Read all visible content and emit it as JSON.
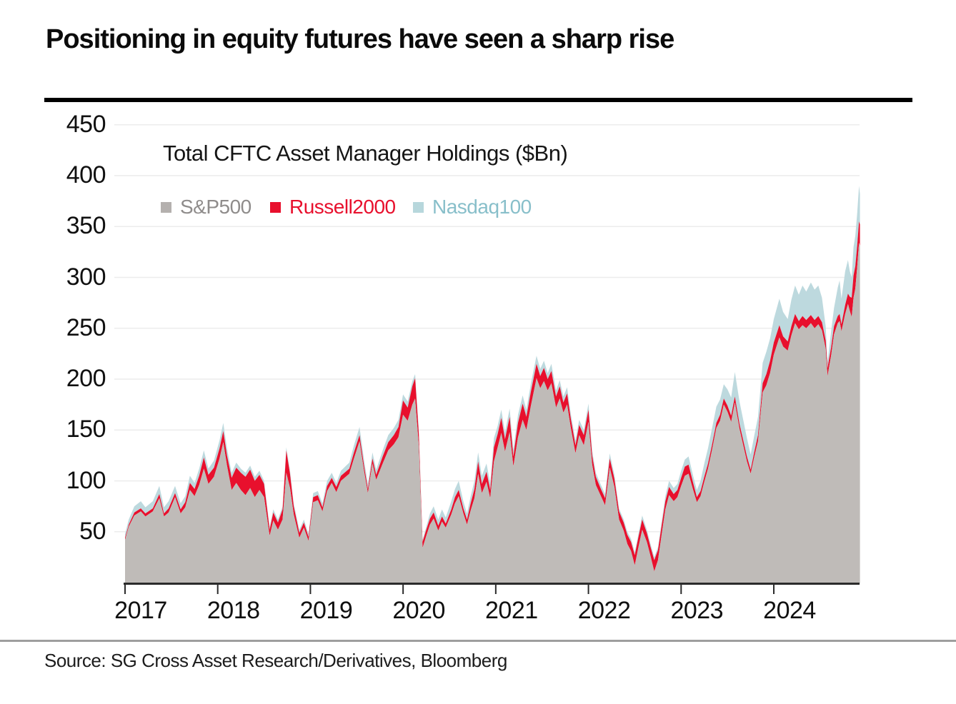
{
  "header": {
    "title": "Positioning in equity futures have seen a sharp rise"
  },
  "legend": {
    "heading": "Total CFTC Asset Manager Holdings ($Bn)",
    "items": [
      {
        "label": "S&P500",
        "marker_color": "#b4b0ae",
        "text_color": "#8f8c8b"
      },
      {
        "label": "Russell2000",
        "marker_color": "#e8102d",
        "text_color": "#e8102d"
      },
      {
        "label": "Nasdaq100",
        "marker_color": "#b7d7dc",
        "text_color": "#88bfca"
      }
    ]
  },
  "footer": {
    "source": "Source: SG Cross Asset Research/Derivatives, Bloomberg"
  },
  "colors": {
    "sp_area": "#bfbbb8",
    "russell_area": "#e8102d",
    "nasdaq_area": "#bdd9de",
    "grid": "#ececec",
    "axis": "#2b2b2b",
    "text": "#101010"
  },
  "chart_data": {
    "type": "area",
    "stacked": true,
    "title": "Total CFTC Asset Manager Holdings ($Bn)",
    "series_names": [
      "S&P500",
      "Russell2000",
      "Nasdaq100"
    ],
    "x_unit": "year (decimal)",
    "xlim": [
      2017,
      2024.95
    ],
    "ylim": [
      0,
      470
    ],
    "x_ticks": [
      2017,
      2018,
      2019,
      2020,
      2021,
      2022,
      2023,
      2024
    ],
    "y_ticks": [
      50,
      100,
      150,
      200,
      250,
      300,
      350,
      400,
      450
    ],
    "grid": true,
    "legend_position": "top-left",
    "points_format": "[year, S&P500, Russell2000, Nasdaq100] in $Bn (stacked bottom-to-top)",
    "points": [
      [
        2017.0,
        42,
        2,
        4
      ],
      [
        2017.04,
        55,
        2,
        5
      ],
      [
        2017.1,
        66,
        3,
        6
      ],
      [
        2017.17,
        70,
        3,
        7
      ],
      [
        2017.22,
        65,
        3,
        6
      ],
      [
        2017.3,
        70,
        3,
        7
      ],
      [
        2017.37,
        83,
        4,
        8
      ],
      [
        2017.42,
        65,
        3,
        6
      ],
      [
        2017.47,
        69,
        4,
        7
      ],
      [
        2017.54,
        84,
        4,
        7
      ],
      [
        2017.6,
        68,
        4,
        6
      ],
      [
        2017.65,
        74,
        5,
        6
      ],
      [
        2017.7,
        91,
        7,
        7
      ],
      [
        2017.75,
        85,
        7,
        6
      ],
      [
        2017.8,
        96,
        9,
        7
      ],
      [
        2017.85,
        112,
        11,
        7
      ],
      [
        2017.9,
        97,
        9,
        6
      ],
      [
        2017.96,
        104,
        9,
        7
      ],
      [
        2018.02,
        122,
        10,
        8
      ],
      [
        2018.06,
        138,
        11,
        8
      ],
      [
        2018.1,
        115,
        10,
        7
      ],
      [
        2018.15,
        91,
        12,
        5
      ],
      [
        2018.2,
        98,
        15,
        5
      ],
      [
        2018.25,
        91,
        17,
        4
      ],
      [
        2018.3,
        86,
        18,
        4
      ],
      [
        2018.35,
        93,
        18,
        4
      ],
      [
        2018.4,
        84,
        16,
        4
      ],
      [
        2018.45,
        91,
        15,
        4
      ],
      [
        2018.5,
        84,
        13,
        3
      ],
      [
        2018.56,
        46,
        6,
        3
      ],
      [
        2018.6,
        61,
        8,
        3
      ],
      [
        2018.65,
        52,
        7,
        3
      ],
      [
        2018.7,
        62,
        10,
        3
      ],
      [
        2018.74,
        108,
        22,
        3
      ],
      [
        2018.78,
        93,
        14,
        3
      ],
      [
        2018.82,
        67,
        8,
        3
      ],
      [
        2018.88,
        44,
        5,
        3
      ],
      [
        2018.93,
        54,
        5,
        3
      ],
      [
        2018.98,
        41,
        4,
        3
      ],
      [
        2019.03,
        79,
        5,
        4
      ],
      [
        2019.08,
        81,
        5,
        4
      ],
      [
        2019.13,
        70,
        4,
        4
      ],
      [
        2019.18,
        90,
        5,
        5
      ],
      [
        2019.23,
        98,
        5,
        5
      ],
      [
        2019.28,
        89,
        5,
        4
      ],
      [
        2019.33,
        100,
        5,
        5
      ],
      [
        2019.42,
        107,
        5,
        6
      ],
      [
        2019.47,
        122,
        6,
        7
      ],
      [
        2019.53,
        139,
        6,
        8
      ],
      [
        2019.58,
        109,
        5,
        6
      ],
      [
        2019.62,
        88,
        4,
        5
      ],
      [
        2019.67,
        117,
        5,
        6
      ],
      [
        2019.71,
        101,
        5,
        5
      ],
      [
        2019.78,
        117,
        7,
        6
      ],
      [
        2019.84,
        130,
        8,
        7
      ],
      [
        2019.9,
        136,
        9,
        7
      ],
      [
        2019.95,
        143,
        10,
        7
      ],
      [
        2020.0,
        165,
        14,
        6
      ],
      [
        2020.05,
        159,
        13,
        6
      ],
      [
        2020.1,
        175,
        18,
        5
      ],
      [
        2020.13,
        181,
        20,
        4
      ],
      [
        2020.17,
        134,
        12,
        4
      ],
      [
        2020.21,
        34,
        6,
        2
      ],
      [
        2020.25,
        46,
        6,
        3
      ],
      [
        2020.29,
        57,
        6,
        5
      ],
      [
        2020.33,
        63,
        6,
        6
      ],
      [
        2020.38,
        51,
        5,
        6
      ],
      [
        2020.42,
        60,
        5,
        7
      ],
      [
        2020.46,
        54,
        4,
        6
      ],
      [
        2020.52,
        67,
        5,
        8
      ],
      [
        2020.56,
        78,
        6,
        8
      ],
      [
        2020.6,
        85,
        6,
        9
      ],
      [
        2020.65,
        68,
        5,
        7
      ],
      [
        2020.69,
        57,
        5,
        6
      ],
      [
        2020.73,
        71,
        7,
        7
      ],
      [
        2020.77,
        83,
        9,
        8
      ],
      [
        2020.81,
        107,
        12,
        9
      ],
      [
        2020.85,
        88,
        9,
        8
      ],
      [
        2020.9,
        99,
        10,
        8
      ],
      [
        2020.94,
        83,
        8,
        7
      ],
      [
        2020.98,
        119,
        14,
        9
      ],
      [
        2021.02,
        133,
        13,
        8
      ],
      [
        2021.06,
        147,
        15,
        8
      ],
      [
        2021.1,
        129,
        12,
        7
      ],
      [
        2021.15,
        148,
        15,
        8
      ],
      [
        2021.19,
        114,
        10,
        7
      ],
      [
        2021.24,
        143,
        14,
        8
      ],
      [
        2021.29,
        160,
        16,
        8
      ],
      [
        2021.33,
        150,
        13,
        7
      ],
      [
        2021.38,
        174,
        14,
        8
      ],
      [
        2021.44,
        201,
        14,
        8
      ],
      [
        2021.48,
        191,
        12,
        7
      ],
      [
        2021.52,
        198,
        13,
        7
      ],
      [
        2021.56,
        189,
        11,
        6
      ],
      [
        2021.6,
        196,
        12,
        7
      ],
      [
        2021.65,
        172,
        11,
        6
      ],
      [
        2021.69,
        181,
        12,
        6
      ],
      [
        2021.73,
        167,
        10,
        6
      ],
      [
        2021.77,
        175,
        11,
        6
      ],
      [
        2021.81,
        152,
        9,
        5
      ],
      [
        2021.86,
        127,
        8,
        5
      ],
      [
        2021.9,
        145,
        10,
        5
      ],
      [
        2021.95,
        135,
        10,
        5
      ],
      [
        2022.0,
        158,
        12,
        6
      ],
      [
        2022.04,
        116,
        9,
        5
      ],
      [
        2022.08,
        96,
        8,
        4
      ],
      [
        2022.13,
        86,
        7,
        4
      ],
      [
        2022.18,
        76,
        7,
        4
      ],
      [
        2022.23,
        113,
        9,
        5
      ],
      [
        2022.28,
        94,
        8,
        4
      ],
      [
        2022.33,
        62,
        8,
        3
      ],
      [
        2022.38,
        51,
        8,
        3
      ],
      [
        2022.42,
        38,
        9,
        3
      ],
      [
        2022.46,
        31,
        9,
        3
      ],
      [
        2022.5,
        17,
        10,
        3
      ],
      [
        2022.54,
        35,
        10,
        3
      ],
      [
        2022.58,
        52,
        10,
        4
      ],
      [
        2022.63,
        40,
        9,
        3
      ],
      [
        2022.67,
        26,
        9,
        3
      ],
      [
        2022.71,
        11,
        11,
        3
      ],
      [
        2022.75,
        22,
        10,
        3
      ],
      [
        2022.79,
        47,
        9,
        4
      ],
      [
        2022.83,
        72,
        8,
        5
      ],
      [
        2022.87,
        86,
        8,
        6
      ],
      [
        2022.92,
        80,
        7,
        6
      ],
      [
        2022.96,
        84,
        7,
        6
      ],
      [
        2023.0,
        95,
        8,
        7
      ],
      [
        2023.04,
        105,
        9,
        7
      ],
      [
        2023.08,
        107,
        9,
        8
      ],
      [
        2023.13,
        91,
        7,
        7
      ],
      [
        2023.17,
        79,
        5,
        7
      ],
      [
        2023.21,
        85,
        5,
        10
      ],
      [
        2023.25,
        99,
        5,
        13
      ],
      [
        2023.29,
        112,
        5,
        15
      ],
      [
        2023.33,
        129,
        5,
        16
      ],
      [
        2023.38,
        152,
        5,
        16
      ],
      [
        2023.42,
        159,
        6,
        15
      ],
      [
        2023.46,
        175,
        6,
        14
      ],
      [
        2023.5,
        168,
        6,
        16
      ],
      [
        2023.54,
        158,
        6,
        18
      ],
      [
        2023.58,
        177,
        6,
        24
      ],
      [
        2023.63,
        151,
        5,
        22
      ],
      [
        2023.67,
        135,
        5,
        20
      ],
      [
        2023.71,
        119,
        5,
        18
      ],
      [
        2023.75,
        107,
        4,
        15
      ],
      [
        2023.79,
        124,
        5,
        16
      ],
      [
        2023.83,
        139,
        6,
        18
      ],
      [
        2023.88,
        187,
        9,
        20
      ],
      [
        2023.92,
        194,
        11,
        22
      ],
      [
        2023.96,
        206,
        12,
        22
      ],
      [
        2024.0,
        224,
        12,
        23
      ],
      [
        2024.06,
        241,
        12,
        26
      ],
      [
        2024.1,
        232,
        10,
        24
      ],
      [
        2024.15,
        228,
        9,
        22
      ],
      [
        2024.19,
        243,
        9,
        26
      ],
      [
        2024.23,
        255,
        9,
        28
      ],
      [
        2024.27,
        249,
        8,
        26
      ],
      [
        2024.31,
        253,
        9,
        30
      ],
      [
        2024.35,
        250,
        8,
        28
      ],
      [
        2024.4,
        255,
        8,
        32
      ],
      [
        2024.44,
        250,
        8,
        30
      ],
      [
        2024.48,
        254,
        8,
        30
      ],
      [
        2024.52,
        248,
        8,
        24
      ],
      [
        2024.56,
        230,
        8,
        14
      ],
      [
        2024.58,
        203,
        8,
        6
      ],
      [
        2024.62,
        224,
        8,
        16
      ],
      [
        2024.65,
        244,
        8,
        18
      ],
      [
        2024.69,
        255,
        7,
        28
      ],
      [
        2024.71,
        257,
        7,
        33
      ],
      [
        2024.73,
        247,
        7,
        25
      ],
      [
        2024.77,
        264,
        9,
        33
      ],
      [
        2024.8,
        274,
        10,
        33
      ],
      [
        2024.82,
        267,
        14,
        25
      ],
      [
        2024.84,
        261,
        19,
        20
      ],
      [
        2024.86,
        280,
        22,
        28
      ],
      [
        2024.88,
        289,
        22,
        30
      ],
      [
        2024.9,
        310,
        21,
        32
      ],
      [
        2024.92,
        334,
        21,
        35
      ],
      [
        2024.93,
        331,
        21,
        30
      ]
    ]
  }
}
